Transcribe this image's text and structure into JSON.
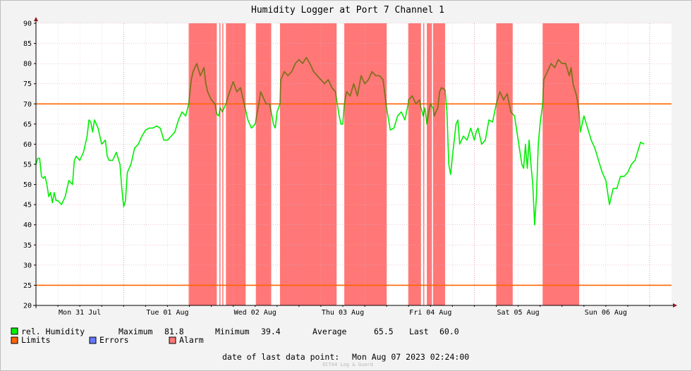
{
  "chart_data": {
    "type": "line",
    "title": "Humidity Logger at Port 7 Channel 1",
    "ylim": [
      20,
      90
    ],
    "y_ticks": [
      20,
      25,
      30,
      35,
      40,
      45,
      50,
      55,
      60,
      65,
      70,
      75,
      80,
      85,
      90
    ],
    "x_range_hours": [
      0,
      168
    ],
    "x_tick_labels": [
      {
        "label": "Mon 31 Jul",
        "hour": 0
      },
      {
        "label": "Tue 01 Aug",
        "hour": 24
      },
      {
        "label": "Wed 02 Aug",
        "hour": 48
      },
      {
        "label": "Thu 03 Aug",
        "hour": 72
      },
      {
        "label": "Fri 04 Aug",
        "hour": 96
      },
      {
        "label": "Sat 05 Aug",
        "hour": 120
      },
      {
        "label": "Sun 06 Aug",
        "hour": 144
      }
    ],
    "grid": true,
    "limits": [
      70,
      25
    ],
    "alarm_periods_hours": [
      [
        41.8,
        49.5
      ],
      [
        50.2,
        50.5
      ],
      [
        51.0,
        51.3
      ],
      [
        52.0,
        57.4
      ],
      [
        60.2,
        64.4
      ],
      [
        66.8,
        82.3
      ],
      [
        84.4,
        96.0
      ],
      [
        101.9,
        105.4
      ],
      [
        106.0,
        106.3
      ],
      [
        107.0,
        108.4
      ],
      [
        108.7,
        112.0
      ],
      [
        126.0,
        130.5
      ],
      [
        138.7,
        148.7
      ]
    ],
    "series": [
      {
        "name": "rel. Humidity",
        "points": [
          [
            0,
            55
          ],
          [
            0.5,
            56.5
          ],
          [
            1,
            56.5
          ],
          [
            1.5,
            52
          ],
          [
            2,
            51.5
          ],
          [
            2.5,
            52
          ],
          [
            3,
            50
          ],
          [
            3.5,
            47
          ],
          [
            4,
            48
          ],
          [
            4.5,
            45.5
          ],
          [
            5,
            48
          ],
          [
            5.5,
            46
          ],
          [
            6,
            46
          ],
          [
            7,
            45
          ],
          [
            8,
            47
          ],
          [
            9,
            51
          ],
          [
            10,
            50
          ],
          [
            10.5,
            56
          ],
          [
            11,
            57
          ],
          [
            12,
            56
          ],
          [
            13,
            58
          ],
          [
            14,
            62
          ],
          [
            14.5,
            66
          ],
          [
            15,
            65.5
          ],
          [
            15.5,
            63
          ],
          [
            16,
            66
          ],
          [
            17,
            64
          ],
          [
            18,
            60
          ],
          [
            19,
            61
          ],
          [
            19.5,
            57
          ],
          [
            20,
            56
          ],
          [
            21,
            56
          ],
          [
            22,
            58
          ],
          [
            23,
            55
          ],
          [
            23.5,
            49
          ],
          [
            24,
            44.5
          ],
          [
            24.5,
            46
          ],
          [
            25,
            53
          ],
          [
            26,
            55
          ],
          [
            27,
            59
          ],
          [
            28,
            60
          ],
          [
            29,
            62
          ],
          [
            30,
            63.5
          ],
          [
            31,
            64
          ],
          [
            32,
            64
          ],
          [
            33,
            64.5
          ],
          [
            34,
            64
          ],
          [
            35,
            61
          ],
          [
            36,
            61
          ],
          [
            37,
            62
          ],
          [
            38,
            63
          ],
          [
            39,
            66
          ],
          [
            40,
            68
          ],
          [
            41,
            67
          ],
          [
            41.8,
            70
          ],
          [
            42.5,
            76
          ],
          [
            43,
            78
          ],
          [
            44,
            80
          ],
          [
            45,
            77
          ],
          [
            46,
            79
          ],
          [
            46.5,
            75
          ],
          [
            47,
            73
          ],
          [
            48,
            71
          ],
          [
            49,
            70
          ],
          [
            49.5,
            67.5
          ],
          [
            50,
            67
          ],
          [
            50.5,
            69
          ],
          [
            51,
            68
          ],
          [
            51.5,
            69
          ],
          [
            52,
            70
          ],
          [
            53,
            73
          ],
          [
            54,
            75.5
          ],
          [
            55,
            73
          ],
          [
            56,
            74
          ],
          [
            57,
            70
          ],
          [
            58,
            66
          ],
          [
            59,
            64
          ],
          [
            60,
            65
          ],
          [
            61,
            70
          ],
          [
            61.5,
            73
          ],
          [
            62,
            72
          ],
          [
            63,
            70
          ],
          [
            64,
            70
          ],
          [
            65,
            65
          ],
          [
            65.5,
            64
          ],
          [
            66,
            68
          ],
          [
            66.8,
            70
          ],
          [
            67,
            76
          ],
          [
            68,
            78
          ],
          [
            69,
            77
          ],
          [
            70,
            78
          ],
          [
            71,
            80
          ],
          [
            72,
            81
          ],
          [
            73,
            80
          ],
          [
            74,
            81.5
          ],
          [
            75,
            80
          ],
          [
            76,
            78
          ],
          [
            77,
            77
          ],
          [
            78,
            76
          ],
          [
            79,
            75
          ],
          [
            80,
            76
          ],
          [
            81,
            74
          ],
          [
            82,
            73
          ],
          [
            82.5,
            70
          ],
          [
            83,
            67
          ],
          [
            83.5,
            65
          ],
          [
            84,
            65
          ],
          [
            84.4,
            70
          ],
          [
            85,
            73
          ],
          [
            86,
            72
          ],
          [
            87,
            75
          ],
          [
            88,
            72
          ],
          [
            89,
            77
          ],
          [
            90,
            75
          ],
          [
            91,
            76
          ],
          [
            92,
            78
          ],
          [
            93,
            77
          ],
          [
            94,
            77
          ],
          [
            95,
            76
          ],
          [
            96,
            69
          ],
          [
            97,
            63.5
          ],
          [
            98,
            64
          ],
          [
            99,
            67
          ],
          [
            100,
            68
          ],
          [
            101,
            66
          ],
          [
            101.9,
            70
          ],
          [
            102,
            71
          ],
          [
            103,
            72
          ],
          [
            104,
            70
          ],
          [
            105,
            71
          ],
          [
            105.4,
            69
          ],
          [
            106,
            67
          ],
          [
            106.5,
            69
          ],
          [
            107,
            65
          ],
          [
            107.5,
            68
          ],
          [
            108,
            70
          ],
          [
            108.7,
            69
          ],
          [
            109,
            67
          ],
          [
            110,
            69
          ],
          [
            110.5,
            73
          ],
          [
            111,
            74
          ],
          [
            112,
            73.5
          ],
          [
            112.5,
            68
          ],
          [
            113,
            55
          ],
          [
            113.5,
            52.5
          ],
          [
            114,
            57
          ],
          [
            115,
            65
          ],
          [
            115.5,
            66
          ],
          [
            116,
            60
          ],
          [
            117,
            62
          ],
          [
            118,
            61
          ],
          [
            119,
            64
          ],
          [
            120,
            61
          ],
          [
            120.5,
            63
          ],
          [
            121,
            64
          ],
          [
            122,
            60
          ],
          [
            123,
            61
          ],
          [
            124,
            66
          ],
          [
            125,
            65.5
          ],
          [
            126,
            70
          ],
          [
            127,
            73
          ],
          [
            128,
            71
          ],
          [
            129,
            72.5
          ],
          [
            130,
            68
          ],
          [
            131,
            67
          ],
          [
            132,
            61
          ],
          [
            133,
            55
          ],
          [
            133.5,
            54
          ],
          [
            134,
            60
          ],
          [
            134.5,
            54
          ],
          [
            135,
            61
          ],
          [
            135.5,
            55
          ],
          [
            136,
            50
          ],
          [
            136.5,
            40
          ],
          [
            137,
            47
          ],
          [
            137.5,
            60
          ],
          [
            138,
            65
          ],
          [
            138.7,
            70
          ],
          [
            139,
            76
          ],
          [
            140,
            78
          ],
          [
            141,
            80
          ],
          [
            142,
            79
          ],
          [
            143,
            81
          ],
          [
            144,
            80
          ],
          [
            145,
            80
          ],
          [
            146,
            77
          ],
          [
            146.5,
            79
          ],
          [
            147,
            75
          ],
          [
            148,
            72
          ],
          [
            148.7,
            68
          ],
          [
            149,
            63
          ],
          [
            150,
            67
          ],
          [
            151,
            64
          ],
          [
            152,
            61
          ],
          [
            153,
            59
          ],
          [
            154,
            56
          ],
          [
            155,
            53
          ],
          [
            156,
            51
          ],
          [
            156.5,
            48
          ],
          [
            157,
            45
          ],
          [
            158,
            49
          ],
          [
            159,
            49
          ],
          [
            160,
            52
          ],
          [
            161,
            52
          ],
          [
            162,
            53
          ],
          [
            163,
            55
          ],
          [
            164,
            56
          ],
          [
            165,
            59
          ],
          [
            165.5,
            60.5
          ],
          [
            166.5,
            60
          ]
        ]
      },
      {
        "name": "Limits"
      },
      {
        "name": "Errors"
      },
      {
        "name": "Alarm"
      }
    ]
  },
  "colors": {
    "series": "#00ee00",
    "limits": "#ff6600",
    "errors": "#6677ff",
    "alarm": "#ff7777",
    "alarm_line_overlay": "#8a6a20"
  },
  "legend": {
    "humidity_label": "rel. Humidity",
    "max_label": "Maximum",
    "max_value": "81.8",
    "min_label": "Minimum",
    "min_value": "39.4",
    "avg_label": "Average",
    "avg_value": "65.5",
    "last_label": "Last",
    "last_value": "60.0",
    "limits_label": "Limits",
    "errors_label": "Errors",
    "alarm_label": "Alarm"
  },
  "footer": {
    "last_point_label": "date of last data point:",
    "last_point_value": "Mon Aug 07 2023 02:24:00",
    "watermark": "OCTA4 Log & Guard"
  }
}
